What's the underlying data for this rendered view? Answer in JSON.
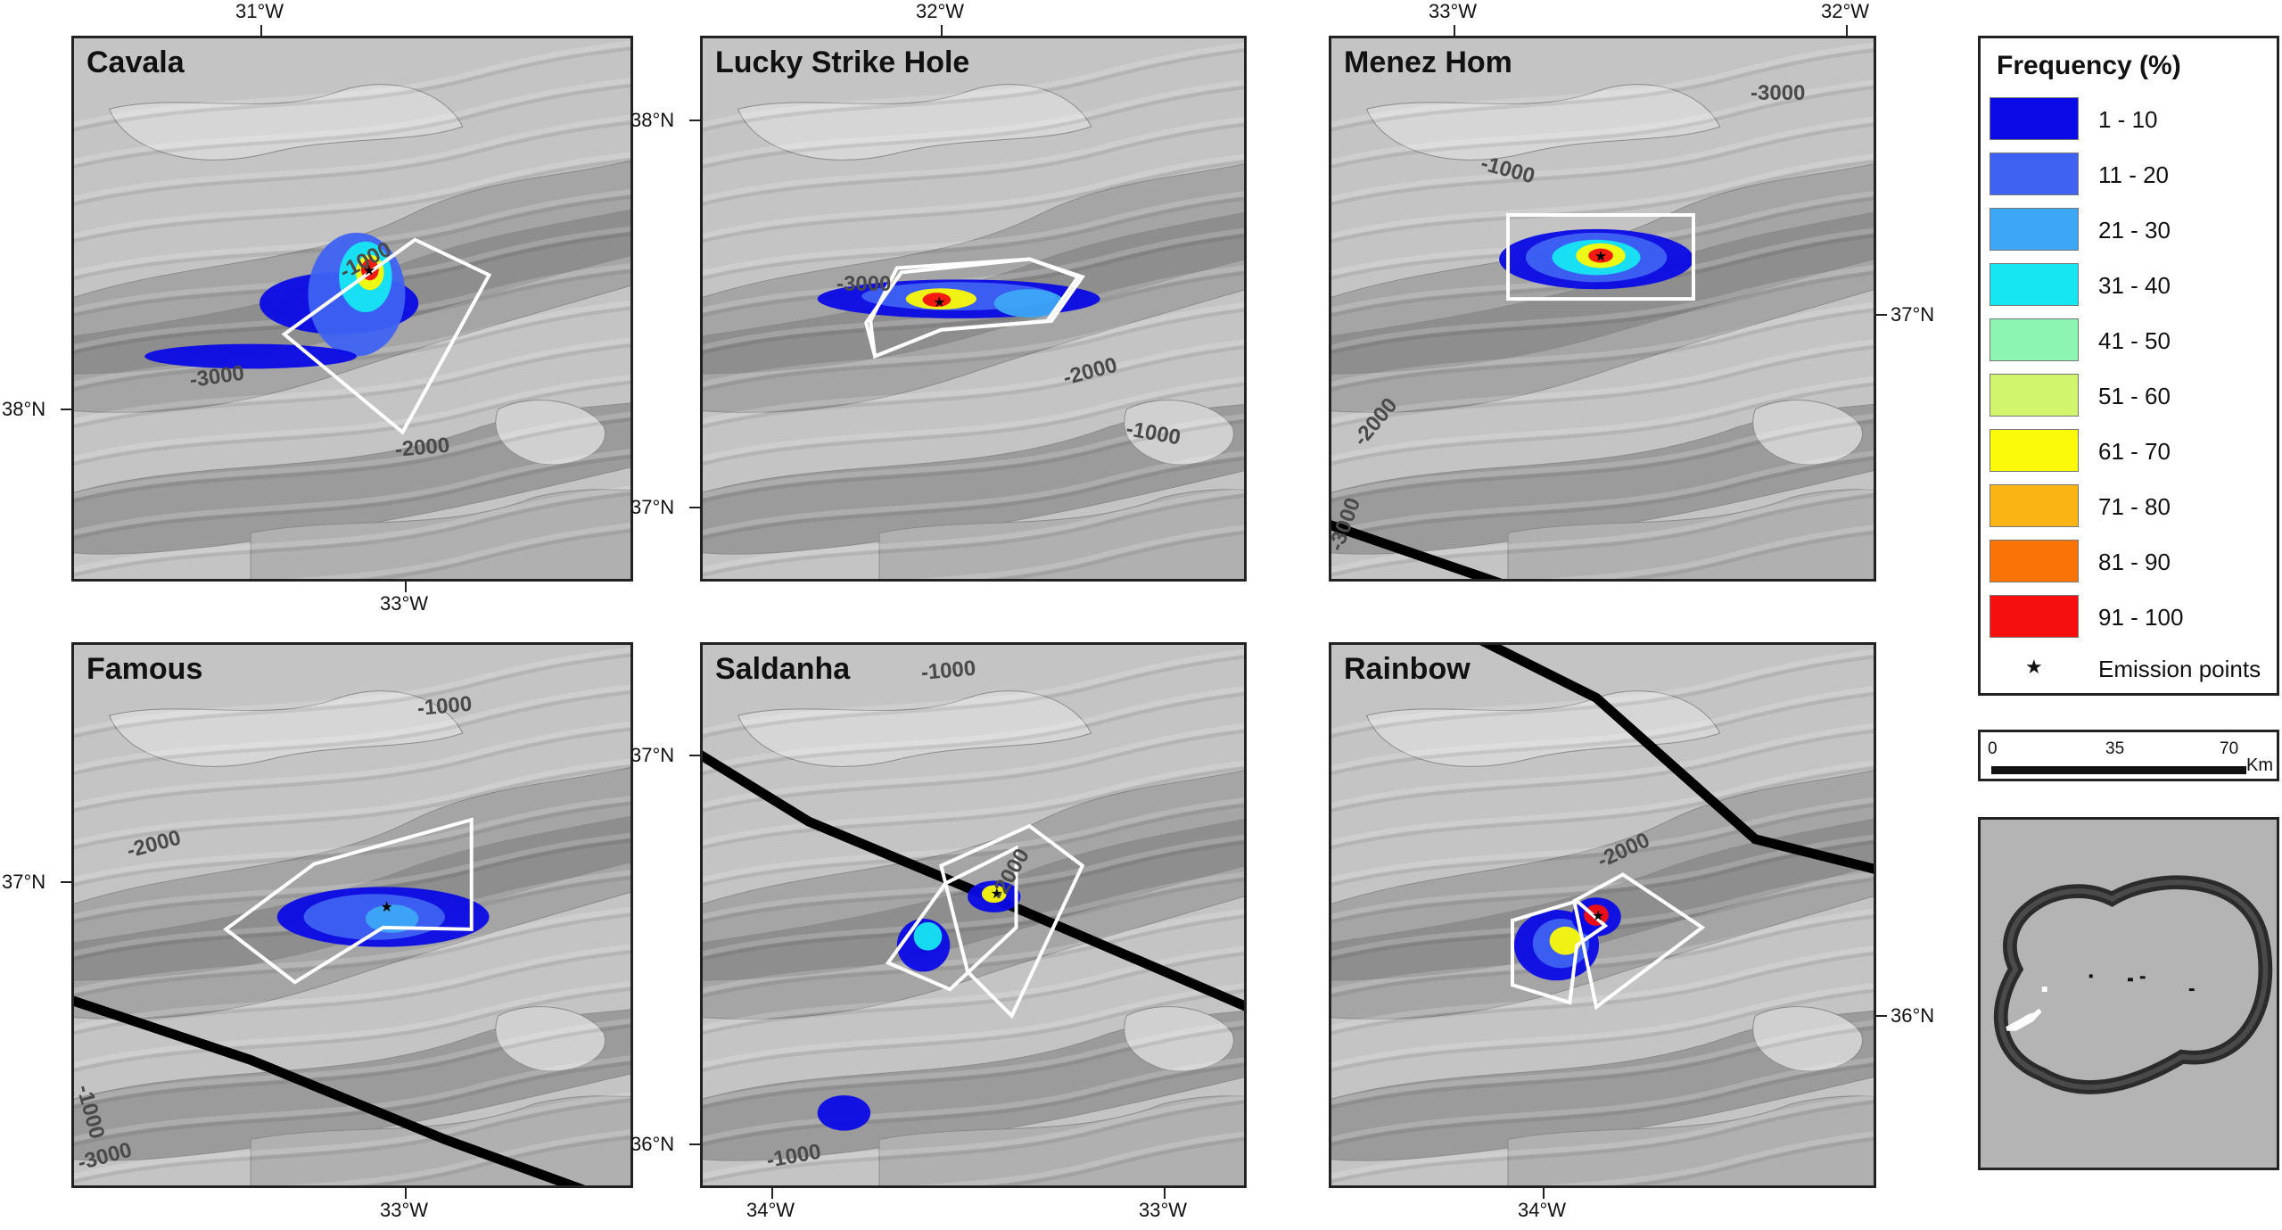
{
  "panels": [
    {
      "name": "Cavala",
      "contours": [
        "-3000",
        "-1000",
        "-2000"
      ],
      "top_labels": [
        "31°W"
      ],
      "bottom_labels": [
        "33°W"
      ],
      "left_labels": [
        "38°N"
      ],
      "right_labels": []
    },
    {
      "name": "Lucky Strike Hole",
      "contours": [
        "-3000",
        "-2000",
        "-1000"
      ],
      "top_labels": [
        "32°W"
      ],
      "bottom_labels": [],
      "left_labels": [
        "38°N",
        "37°N"
      ],
      "right_labels": []
    },
    {
      "name": "Menez Hom",
      "contours": [
        "-3000",
        "-1000",
        "-2000",
        "-3000"
      ],
      "top_labels": [
        "33°W",
        "32°W"
      ],
      "bottom_labels": [],
      "left_labels": [],
      "right_labels": [
        "37°N"
      ]
    },
    {
      "name": "Famous",
      "contours": [
        "-1000",
        "-2000",
        "-1000",
        "-3000"
      ],
      "top_labels": [],
      "bottom_labels": [
        "33°W"
      ],
      "left_labels": [
        "37°N"
      ],
      "right_labels": []
    },
    {
      "name": "Saldanha",
      "contours": [
        "-1000",
        "-2000",
        "-1000"
      ],
      "top_labels": [],
      "bottom_labels": [
        "34°W",
        "33°W"
      ],
      "left_labels": [
        "37°N",
        "36°N"
      ],
      "right_labels": []
    },
    {
      "name": "Rainbow",
      "contours": [
        "-2000"
      ],
      "top_labels": [],
      "bottom_labels": [
        "34°W"
      ],
      "left_labels": [],
      "right_labels": [
        "36°N"
      ]
    }
  ],
  "legend": {
    "title": "Frequency (%)",
    "classes": [
      {
        "label": "1 - 10",
        "color": "#0a0ae6"
      },
      {
        "label": "11 - 20",
        "color": "#3f62f2"
      },
      {
        "label": "21 - 30",
        "color": "#3da6f5"
      },
      {
        "label": "31 - 40",
        "color": "#16e6f2"
      },
      {
        "label": "41 - 50",
        "color": "#8cf5b2"
      },
      {
        "label": "51 - 60",
        "color": "#d2f56e"
      },
      {
        "label": "61 - 70",
        "color": "#fafa0a"
      },
      {
        "label": "71 - 80",
        "color": "#fab414"
      },
      {
        "label": "81 - 90",
        "color": "#fa7306"
      },
      {
        "label": "91 - 100",
        "color": "#f50f0f"
      }
    ],
    "emission_symbol": "★",
    "emission_label": "Emission points"
  },
  "scalebar": {
    "ticks": [
      "0",
      "35",
      "70"
    ],
    "unit": "Km"
  }
}
